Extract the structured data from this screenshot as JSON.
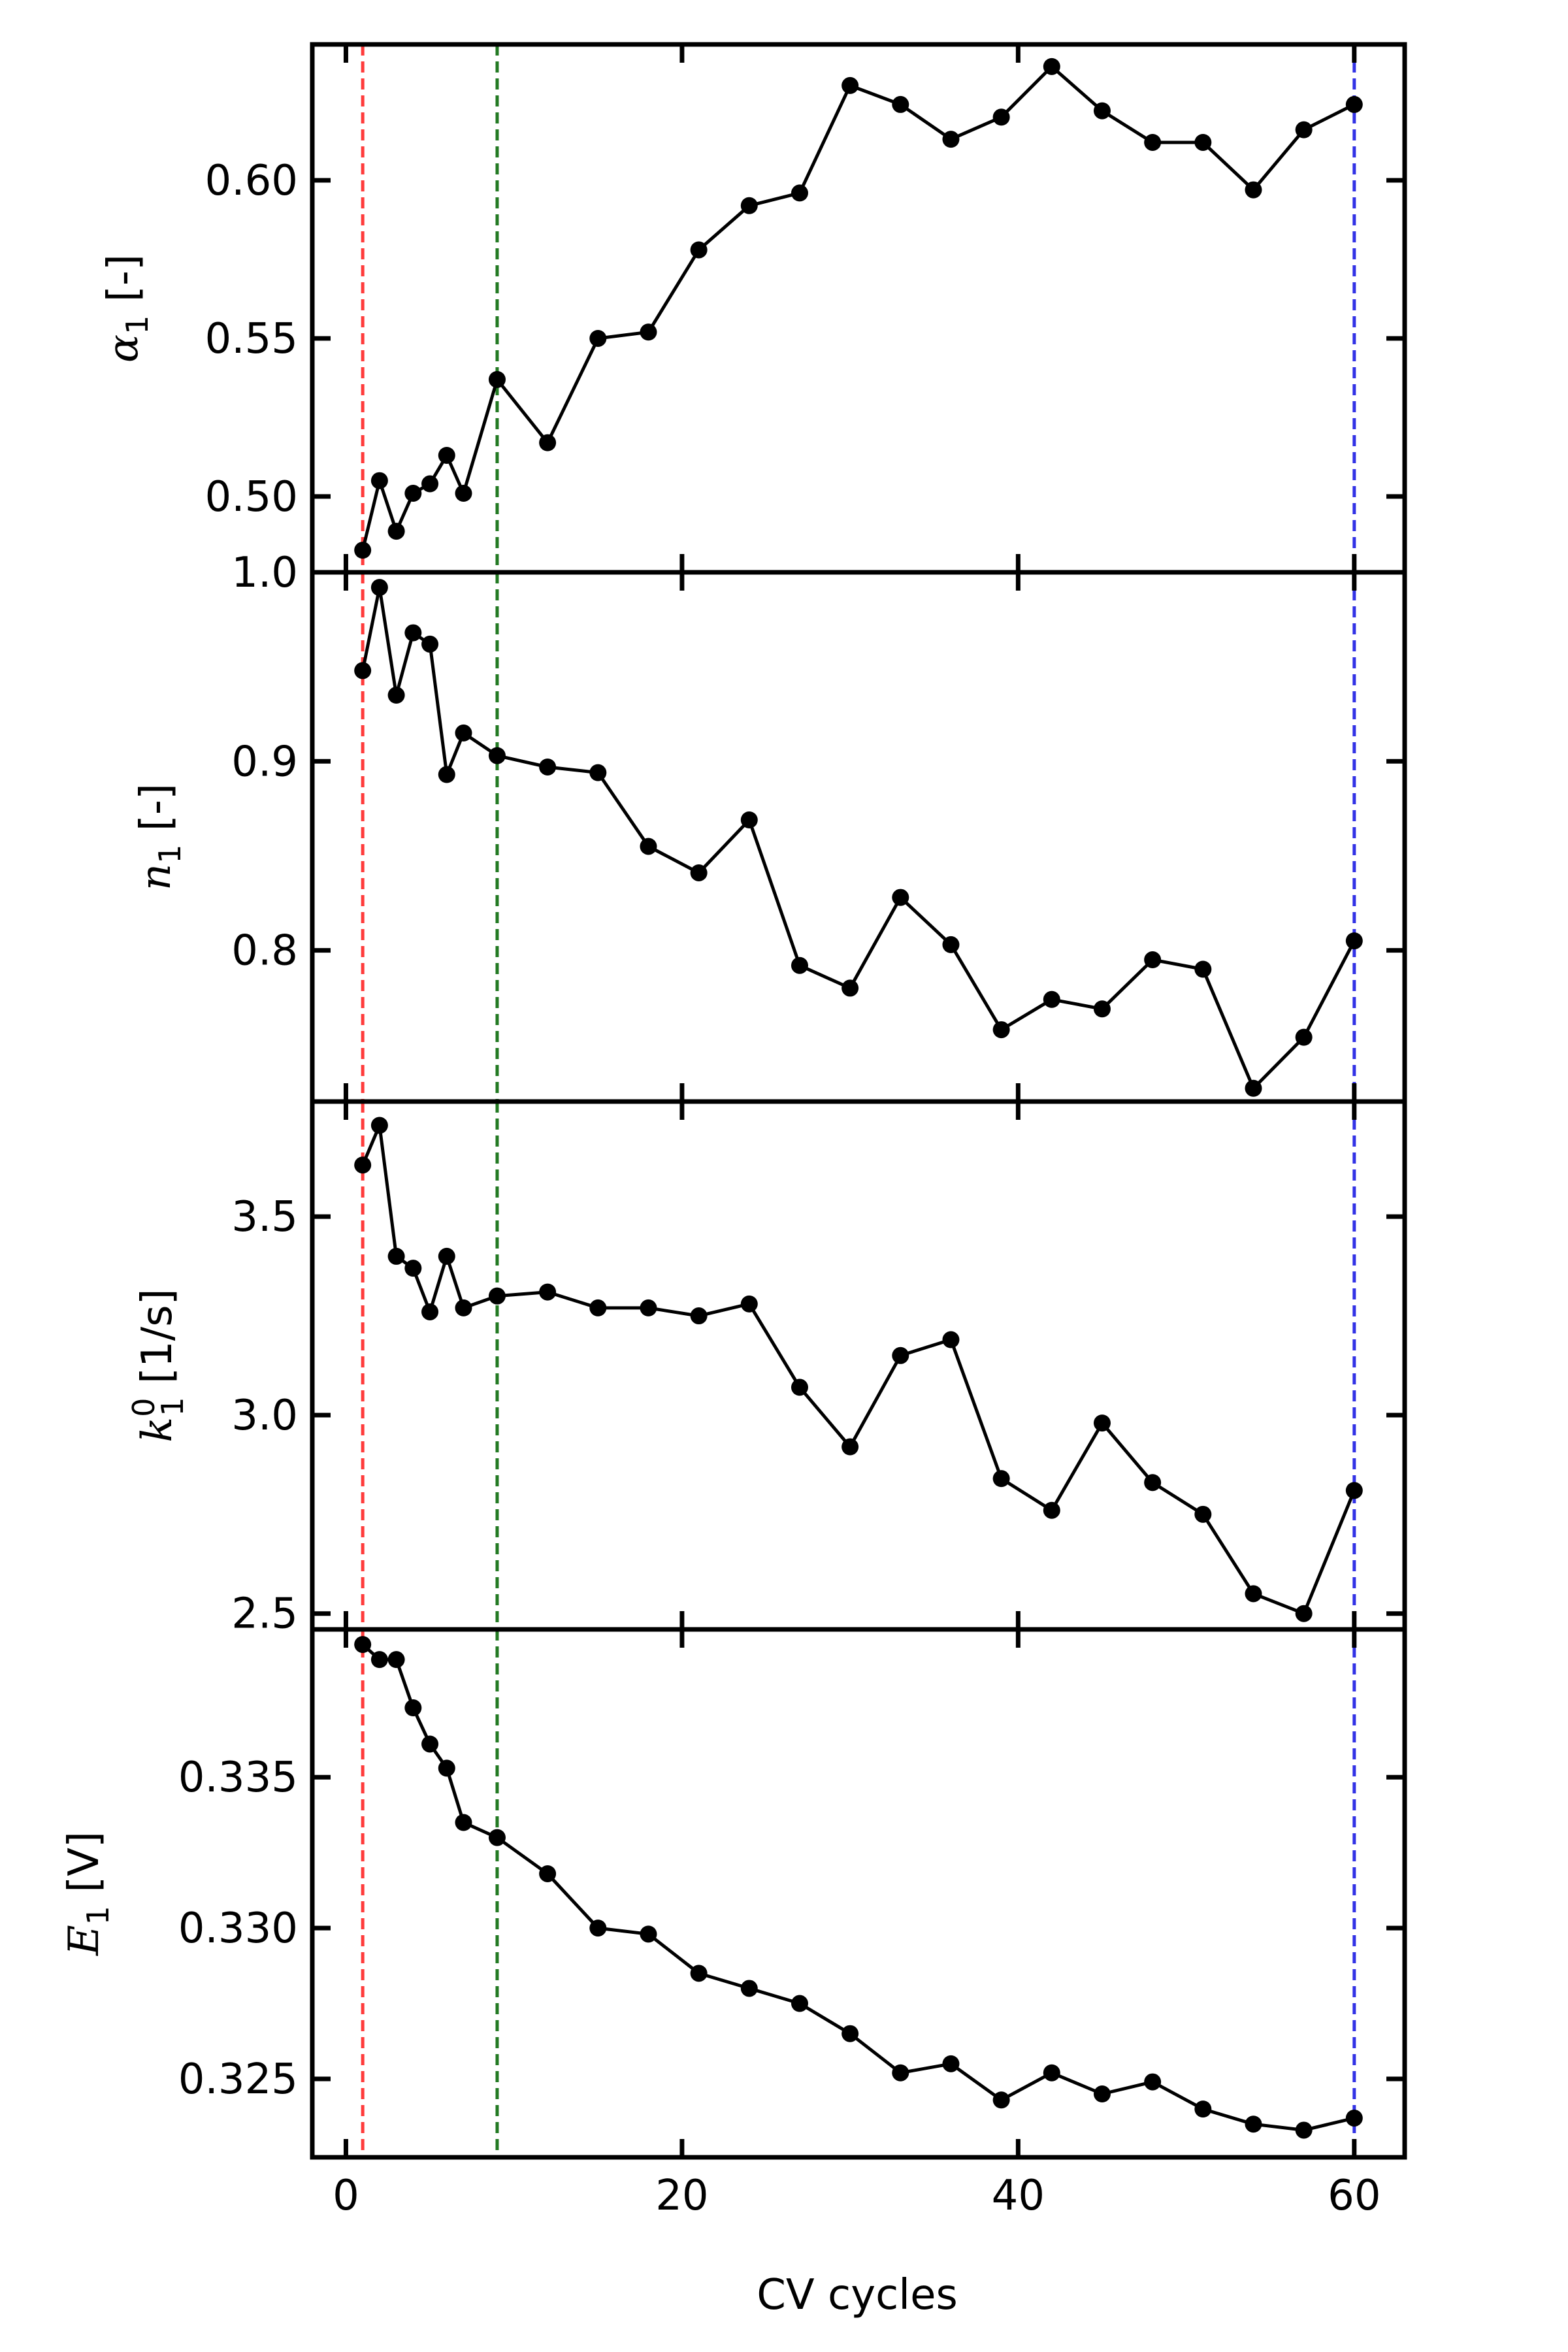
{
  "chart_data": {
    "type": "line",
    "xlabel": "CV cycles",
    "xlim": [
      -2,
      63
    ],
    "xticks": [
      0,
      20,
      40,
      60
    ],
    "x": [
      1,
      2,
      3,
      4,
      5,
      6,
      7,
      9,
      12,
      15,
      18,
      21,
      24,
      27,
      30,
      33,
      36,
      39,
      42,
      45,
      48,
      51,
      54,
      57,
      60
    ],
    "vlines": [
      {
        "x": 1,
        "color": "#ff3b3b",
        "style": "dashed"
      },
      {
        "x": 9,
        "color": "#237a23",
        "style": "dashed"
      },
      {
        "x": 60,
        "color": "#3232e6",
        "style": "dashed"
      }
    ],
    "line_color": "#000000",
    "panels": [
      {
        "ylabel": {
          "sym": "α",
          "sub": "1",
          "sup": "",
          "unit": " [-]"
        },
        "ylim": [
          0.476,
          0.643
        ],
        "yticks": [
          0.5,
          0.55,
          0.6
        ],
        "ytick_labels": [
          "0.50",
          "0.55",
          "0.60"
        ],
        "values": [
          0.483,
          0.505,
          0.489,
          0.501,
          0.504,
          0.513,
          0.501,
          0.537,
          0.517,
          0.55,
          0.552,
          0.578,
          0.592,
          0.596,
          0.63,
          0.624,
          0.613,
          0.62,
          0.636,
          0.622,
          0.612,
          0.612,
          0.597,
          0.616,
          0.624
        ]
      },
      {
        "ylabel": {
          "sym": "n",
          "sub": "1",
          "sup": "",
          "unit": " [-]"
        },
        "ylim": [
          0.72,
          1.0
        ],
        "yticks": [
          0.8,
          0.9,
          1.0
        ],
        "ytick_labels": [
          "0.8",
          "0.9",
          "1.0"
        ],
        "values": [
          0.948,
          0.992,
          0.935,
          0.968,
          0.962,
          0.893,
          0.915,
          0.903,
          0.897,
          0.894,
          0.855,
          0.841,
          0.869,
          0.792,
          0.78,
          0.828,
          0.803,
          0.758,
          0.774,
          0.769,
          0.795,
          0.79,
          0.727,
          0.754,
          0.805
        ]
      },
      {
        "ylabel": {
          "sym": "k",
          "sub": "1",
          "sup": "0",
          "unit": " [1/s]"
        },
        "ylim": [
          2.46,
          3.79
        ],
        "yticks": [
          2.5,
          3.0,
          3.5
        ],
        "ytick_labels": [
          "2.5",
          "3.0",
          "3.5"
        ],
        "values": [
          3.63,
          3.73,
          3.4,
          3.37,
          3.26,
          3.4,
          3.27,
          3.3,
          3.31,
          3.27,
          3.27,
          3.25,
          3.28,
          3.07,
          2.92,
          3.15,
          3.19,
          2.84,
          2.76,
          2.98,
          2.83,
          2.75,
          2.55,
          2.5,
          2.81
        ]
      },
      {
        "ylabel": {
          "sym": "E",
          "sub": "1",
          "sup": "",
          "unit": " [V]"
        },
        "ylim": [
          0.3224,
          0.3399
        ],
        "yticks": [
          0.325,
          0.33,
          0.335
        ],
        "ytick_labels": [
          "0.325",
          "0.330",
          "0.335"
        ],
        "values": [
          0.3394,
          0.3389,
          0.3389,
          0.3373,
          0.3361,
          0.3353,
          0.3335,
          0.333,
          0.3318,
          0.33,
          0.3298,
          0.3285,
          0.328,
          0.3275,
          0.3265,
          0.3252,
          0.3255,
          0.3243,
          0.3252,
          0.3245,
          0.3249,
          0.324,
          0.3235,
          0.3233,
          0.3237
        ]
      }
    ]
  }
}
